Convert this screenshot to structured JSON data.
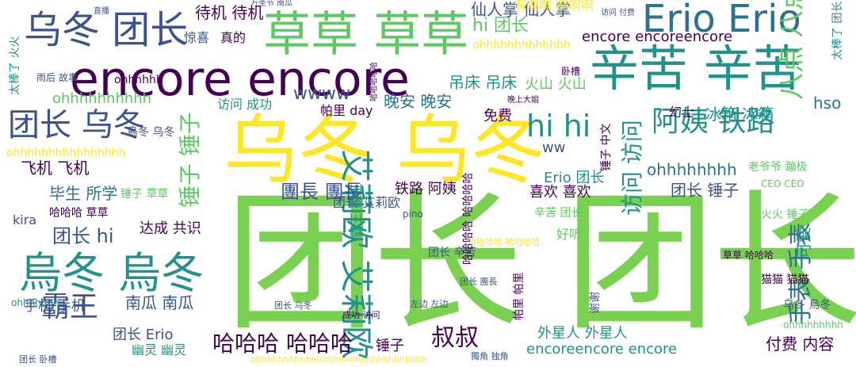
{
  "colors": {
    "background": "#ffffff",
    "palette": [
      "#440154",
      "#3b528b",
      "#21918c",
      "#5ec962",
      "#fde725",
      "#2c728e",
      "#7ad151"
    ]
  },
  "words": [
    {
      "id": "w1",
      "text": "团长 团长",
      "color": "#7ad151"
    },
    {
      "id": "w2",
      "text": "乌冬 乌冬",
      "color": "#fde725"
    },
    {
      "id": "w3",
      "text": "encore encore",
      "color": "#440154"
    },
    {
      "id": "w4",
      "text": "草草 草草",
      "color": "#5ec962"
    },
    {
      "id": "w5",
      "text": "辛苦 辛苦",
      "color": "#21918c"
    },
    {
      "id": "w6",
      "text": "Erio Erio",
      "color": "#2c728e"
    },
    {
      "id": "w7",
      "text": "乌冬 团长",
      "color": "#3b528b"
    },
    {
      "id": "w8",
      "text": "烏冬 烏冬",
      "color": "#21918c"
    },
    {
      "id": "w9",
      "text": "艾莉欧 艾莉欧",
      "color": "#21918c"
    },
    {
      "id": "w10",
      "text": "团长 乌冬",
      "color": "#3b528b"
    },
    {
      "id": "w11",
      "text": "阿姨 铁路",
      "color": "#21918c"
    },
    {
      "id": "w12",
      "text": "八点 八点",
      "color": "#5ec962"
    },
    {
      "id": "w13",
      "text": "霸王",
      "color": "#3b528b"
    },
    {
      "id": "w14",
      "text": "哈哈哈 哈哈哈",
      "color": "#440154"
    },
    {
      "id": "w15",
      "text": "叔叔",
      "color": "#440154"
    },
    {
      "id": "w16",
      "text": "手表 手表",
      "color": "#2c728e"
    },
    {
      "id": "w17",
      "text": "hi hi",
      "color": "#21918c"
    },
    {
      "id": "w18",
      "text": "wwww",
      "color": "#3b528b"
    },
    {
      "id": "w19",
      "text": "访问 访问",
      "color": "#21918c"
    },
    {
      "id": "w20",
      "text": "锤子 锤子",
      "color": "#5ec962"
    },
    {
      "id": "w21",
      "text": "團長 團長",
      "color": "#3b528b"
    },
    {
      "id": "w22",
      "text": "毕生 所学",
      "color": "#2c728e"
    },
    {
      "id": "w23",
      "text": "飞机 飞机",
      "color": "#440154"
    },
    {
      "id": "w24",
      "text": "团长 hi",
      "color": "#3b528b"
    },
    {
      "id": "w25",
      "text": "仙人掌 仙人掌",
      "color": "#3b528b"
    },
    {
      "id": "w26",
      "text": "待机 待机",
      "color": "#440154"
    },
    {
      "id": "w27",
      "text": "encore encoreencore",
      "color": "#440154"
    },
    {
      "id": "w28",
      "text": "hi 团长",
      "color": "#5ec962"
    },
    {
      "id": "w29",
      "text": "ohhhhhhhhhh",
      "color": "#5ec962"
    },
    {
      "id": "w30",
      "text": "吊床 吊床",
      "color": "#21918c"
    },
    {
      "id": "w31",
      "text": "晚安 晚安",
      "color": "#2c728e"
    },
    {
      "id": "w32",
      "text": "冰箱 冰箱",
      "color": "#21918c"
    },
    {
      "id": "w33",
      "text": "ohhhhhhhh",
      "color": "#2c728e"
    },
    {
      "id": "w34",
      "text": "铁路 阿姨",
      "color": "#440154"
    },
    {
      "id": "w35",
      "text": "喜欢 喜欢",
      "color": "#440154"
    },
    {
      "id": "w36",
      "text": "Erio 团长",
      "color": "#21918c"
    },
    {
      "id": "w37",
      "text": "团长 锤子",
      "color": "#3b528b"
    },
    {
      "id": "w38",
      "text": "付费 内容",
      "color": "#440154"
    },
    {
      "id": "w39",
      "text": "锤子",
      "color": "#440154"
    },
    {
      "id": "w40",
      "text": "encoreencore encore",
      "color": "#21918c"
    },
    {
      "id": "w41",
      "text": "外星人 外星人",
      "color": "#21918c"
    },
    {
      "id": "w42",
      "text": "南瓜 南瓜",
      "color": "#3b528b"
    },
    {
      "id": "w43",
      "text": "手机 手机",
      "color": "#3b528b"
    },
    {
      "id": "w44",
      "text": "团长 Erio",
      "color": "#3b528b"
    },
    {
      "id": "w45",
      "text": "幽灵 幽灵",
      "color": "#21918c"
    },
    {
      "id": "w46",
      "text": "达成 共识",
      "color": "#440154"
    },
    {
      "id": "w47",
      "text": "kira",
      "color": "#3b528b"
    },
    {
      "id": "w48",
      "text": "哈哈哈 草草",
      "color": "#440154"
    },
    {
      "id": "w49",
      "text": "锤子 草草",
      "color": "#5ec962"
    },
    {
      "id": "w50",
      "text": "ohhhhhh",
      "color": "#440154"
    },
    {
      "id": "w51",
      "text": "惊喜",
      "color": "#3b528b"
    },
    {
      "id": "w52",
      "text": "真的",
      "color": "#440154"
    },
    {
      "id": "w53",
      "text": "访问 成功",
      "color": "#21918c"
    },
    {
      "id": "w54",
      "text": "帕里 day",
      "color": "#440154"
    },
    {
      "id": "w55",
      "text": "免费",
      "color": "#440154"
    },
    {
      "id": "w56",
      "text": "火山 火山",
      "color": "#5ec962"
    },
    {
      "id": "w57",
      "text": "hso",
      "color": "#2c728e"
    },
    {
      "id": "w58",
      "text": "幻士",
      "color": "#440154"
    },
    {
      "id": "w59",
      "text": "ww",
      "color": "#3b528b"
    },
    {
      "id": "w60",
      "text": "啊啊啊 啊啊啊",
      "color": "#fde725"
    },
    {
      "id": "w61",
      "text": "ohhhhhhhhhhhhh",
      "color": "#fde725"
    },
    {
      "id": "w62",
      "text": "ohhhhhhhhhhhhhhhh",
      "color": "#fde725"
    },
    {
      "id": "w63",
      "text": "团长 艾莉欧",
      "color": "#3b528b"
    },
    {
      "id": "w64",
      "text": "老爷爷 蹦极",
      "color": "#5ec962"
    },
    {
      "id": "w65",
      "text": "好听",
      "color": "#5ec962"
    },
    {
      "id": "w66",
      "text": "可爱",
      "color": "#21918c"
    },
    {
      "id": "w67",
      "text": "团长 辛苦",
      "color": "#3b528b"
    },
    {
      "id": "w68",
      "text": "霸王 霸王",
      "color": "#21918c"
    },
    {
      "id": "w69",
      "text": "猫猫 猫猫",
      "color": "#440154"
    },
    {
      "id": "w70",
      "text": "谢谢",
      "color": "#3b528b"
    },
    {
      "id": "w71",
      "text": "乌冬 烏冬",
      "color": "#3b528b"
    },
    {
      "id": "w72",
      "text": "火火 锤子",
      "color": "#5ec962"
    },
    {
      "id": "w73",
      "text": "锤子 中文",
      "color": "#440154"
    },
    {
      "id": "w74",
      "text": "烏冬 乌冬",
      "color": "#3b528b"
    },
    {
      "id": "w75",
      "text": "ohhhhhhhhh",
      "color": "#5ec962"
    },
    {
      "id": "w76",
      "text": "辛苦 团长",
      "color": "#5ec962"
    },
    {
      "id": "w77",
      "text": "草草 哈哈哈",
      "color": "#440154"
    },
    {
      "id": "w78",
      "text": "pino",
      "color": "#3b528b"
    },
    {
      "id": "w79",
      "text": "ohhhhhhh",
      "color": "#21918c"
    },
    {
      "id": "w80",
      "text": "CEO CEO",
      "color": "#5ec962"
    },
    {
      "id": "w81",
      "text": "团长 卧槽",
      "color": "#3b528b"
    },
    {
      "id": "w82",
      "text": "直播",
      "color": "#3b528b"
    },
    {
      "id": "w83",
      "text": "万圣节 南瓜",
      "color": "#3b528b"
    },
    {
      "id": "w84",
      "text": "访问 付费",
      "color": "#3b528b"
    },
    {
      "id": "w85",
      "text": "卧槽",
      "color": "#440154"
    },
    {
      "id": "w86",
      "text": "晚上大姐",
      "color": "#440154"
    },
    {
      "id": "w87",
      "text": "成功 访问",
      "color": "#440154"
    },
    {
      "id": "w88",
      "text": "左边 左边",
      "color": "#3b528b"
    },
    {
      "id": "w89",
      "text": "哈哈哈哈 哈哈哈哈",
      "color": "#440154"
    },
    {
      "id": "w90",
      "text": "帕里 帕里",
      "color": "#440154"
    },
    {
      "id": "w91",
      "text": "团长 團長",
      "color": "#3b528b"
    },
    {
      "id": "w92",
      "text": "哈哈哈哈哈",
      "color": "#440154"
    },
    {
      "id": "w93",
      "text": "团长 乌冬",
      "color": "#3b528b"
    },
    {
      "id": "w94",
      "text": "獨角 独角",
      "color": "#3b528b"
    },
    {
      "id": "w95",
      "text": "ohhhhhhhhhhhhhhhhhhhhhhhhhhhhhhh",
      "color": "#fde725"
    },
    {
      "id": "w96",
      "text": "雨后 故事",
      "color": "#3b528b"
    },
    {
      "id": "w97",
      "text": "太棒了 火火",
      "color": "#21918c"
    },
    {
      "id": "w98",
      "text": "太棒了 团长",
      "color": "#21918c"
    },
    {
      "id": "w99",
      "text": "哈哈哈哈 哈哈哈哈",
      "color": "#fde725"
    },
    {
      "id": "w100",
      "text": "团长 团长",
      "color": "#7ad151"
    }
  ]
}
